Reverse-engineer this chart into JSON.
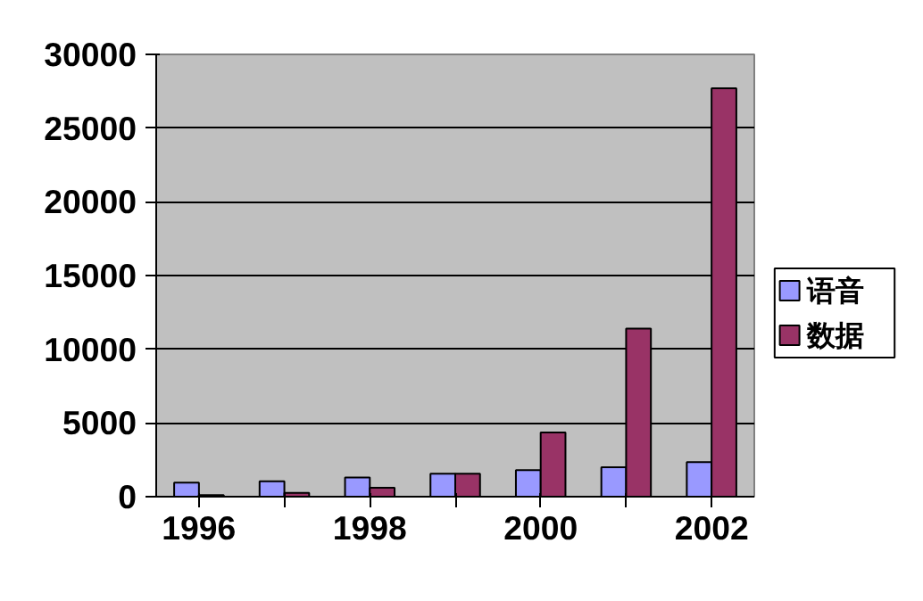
{
  "chart_data": {
    "type": "bar",
    "categories": [
      "1996",
      null,
      "1998",
      null,
      "2000",
      null,
      "2002"
    ],
    "series": [
      {
        "name": "语音",
        "color": "#9999ff",
        "values": [
          950,
          1050,
          1300,
          1550,
          1800,
          2000,
          2350
        ]
      },
      {
        "name": "数据",
        "color": "#993366",
        "values": [
          100,
          250,
          600,
          1550,
          4350,
          11400,
          27700
        ]
      }
    ],
    "ylim": [
      0,
      30000
    ],
    "yticks": [
      0,
      5000,
      10000,
      15000,
      20000,
      25000,
      30000
    ],
    "grid": "y",
    "legend": "right"
  }
}
